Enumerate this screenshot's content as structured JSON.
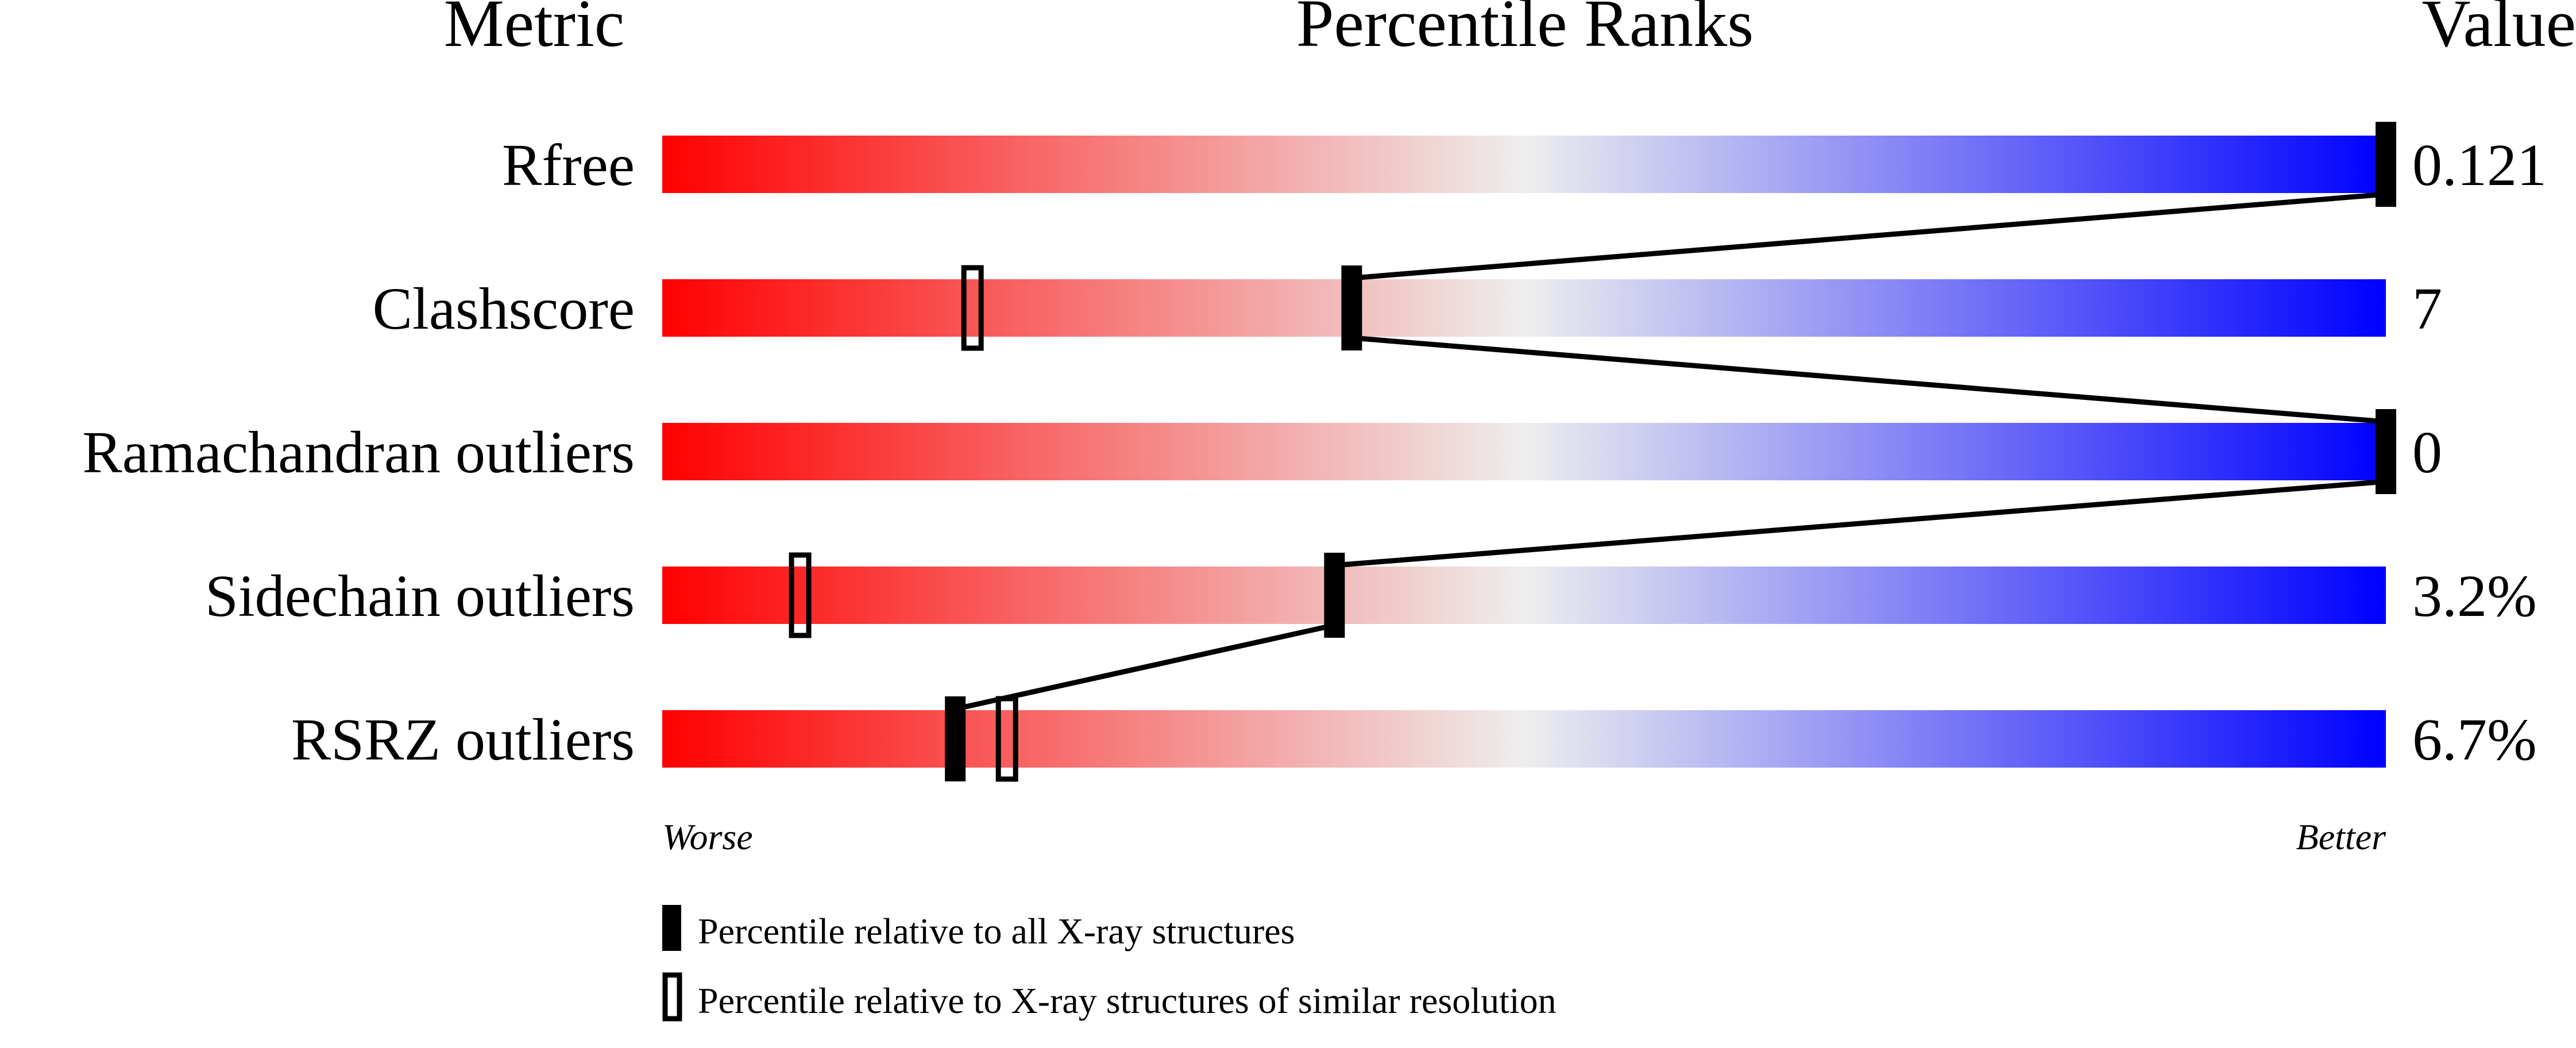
{
  "chart_data": {
    "type": "percentile-bars",
    "headers": {
      "metric": "Metric",
      "percentile": "Percentile Ranks",
      "value": "Value"
    },
    "xlim": [
      0,
      100
    ],
    "gradient": {
      "worse": "#ff0000",
      "middle": "#eeeeee",
      "better": "#0000ff"
    },
    "rows": [
      {
        "metric": "Rfree",
        "value": "0.121",
        "all": 100,
        "similar": null
      },
      {
        "metric": "Clashscore",
        "value": "7",
        "all": 40,
        "similar": 18
      },
      {
        "metric": "Ramachandran outliers",
        "value": "0",
        "all": 100,
        "similar": null
      },
      {
        "metric": "Sidechain outliers",
        "value": "3.2%",
        "all": 39,
        "similar": 8
      },
      {
        "metric": "RSRZ outliers",
        "value": "6.7%",
        "all": 17,
        "similar": 20
      }
    ],
    "axis": {
      "left": "Worse",
      "right": "Better"
    },
    "legend": {
      "all": "Percentile relative to all X-ray structures",
      "similar": "Percentile relative to X-ray structures of similar resolution"
    }
  }
}
